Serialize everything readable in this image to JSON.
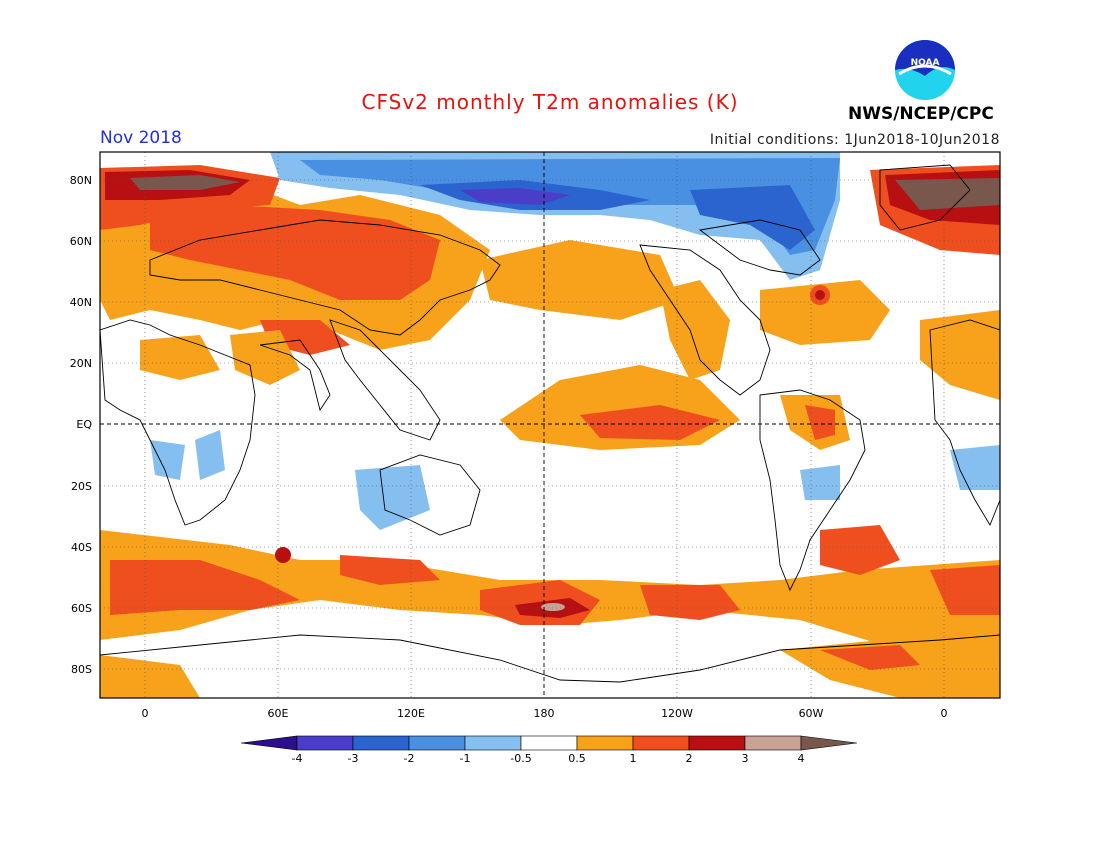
{
  "title": "CFSv2 monthly T2m anomalies (K)",
  "period": "Nov 2018",
  "initial_conditions": "Initial conditions: 1Jun2018-10Jun2018",
  "agency": "NWS/NCEP/CPC",
  "logo_text": "NOAA",
  "colors": {
    "map_background": "#ffffff",
    "land_outline": "#000000",
    "title": "#e8120c",
    "period": "#2230d8"
  },
  "lat_labels": [
    "80N",
    "60N",
    "40N",
    "20N",
    "EQ",
    "20S",
    "40S",
    "60S",
    "80S"
  ],
  "lon_labels": [
    "0",
    "60E",
    "120E",
    "180",
    "120W",
    "60W",
    "0"
  ],
  "colorbar": {
    "colors": [
      "#2a0f8f",
      "#4a3dc8",
      "#2b64cf",
      "#4a90e2",
      "#85bff0",
      "#ffffff",
      "#f7a21a",
      "#ef4f1e",
      "#b80f13",
      "#c9a293",
      "#7a574c"
    ],
    "labels": [
      "-4",
      "-3",
      "-2",
      "-1",
      "-0.5",
      "0.5",
      "1",
      "2",
      "3",
      "4"
    ]
  },
  "colorbar_labels_text": {
    "l0": "-4",
    "l1": "-3",
    "l2": "-2",
    "l3": "-1",
    "l4": "-0.5",
    "l5": "0.5",
    "l6": "1",
    "l7": "2",
    "l8": "3",
    "l9": "4"
  }
}
